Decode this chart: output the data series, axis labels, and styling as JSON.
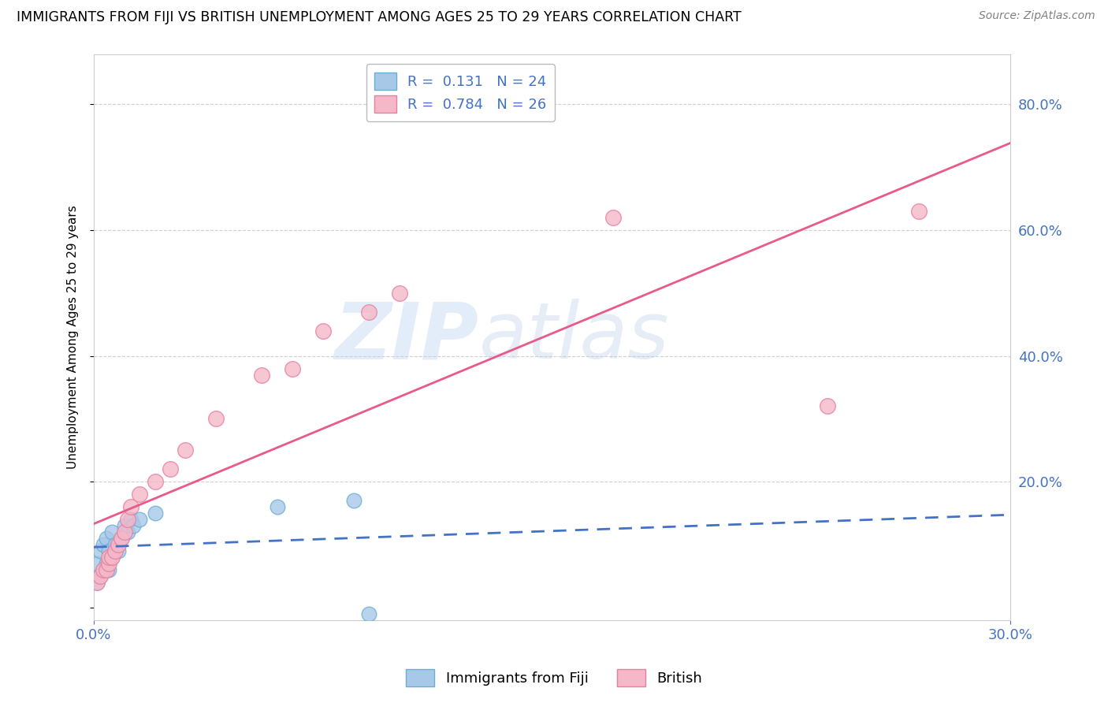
{
  "title": "IMMIGRANTS FROM FIJI VS BRITISH UNEMPLOYMENT AMONG AGES 25 TO 29 YEARS CORRELATION CHART",
  "source": "Source: ZipAtlas.com",
  "ylabel": "Unemployment Among Ages 25 to 29 years",
  "xlabel": "Immigrants from Fiji",
  "xlim": [
    0.0,
    0.3
  ],
  "ylim": [
    -0.02,
    0.88
  ],
  "fiji_color": "#a8c8e8",
  "fiji_edge_color": "#6aaed6",
  "british_color": "#f4b8c8",
  "british_edge_color": "#e87fa0",
  "fiji_line_color": "#4472c4",
  "british_line_color": "#e85a8a",
  "fiji_R": 0.131,
  "fiji_N": 24,
  "british_R": 0.784,
  "british_N": 26,
  "watermark": "ZIPatlas",
  "fiji_scatter_x": [
    0.001,
    0.001,
    0.002,
    0.002,
    0.003,
    0.003,
    0.004,
    0.004,
    0.005,
    0.005,
    0.006,
    0.006,
    0.007,
    0.008,
    0.009,
    0.01,
    0.011,
    0.012,
    0.013,
    0.015,
    0.02,
    0.06,
    0.085,
    0.09
  ],
  "fiji_scatter_y": [
    0.04,
    0.07,
    0.05,
    0.09,
    0.06,
    0.1,
    0.07,
    0.11,
    0.06,
    0.09,
    0.08,
    0.12,
    0.1,
    0.09,
    0.11,
    0.13,
    0.12,
    0.14,
    0.13,
    0.14,
    0.15,
    0.16,
    0.17,
    -0.01
  ],
  "british_scatter_x": [
    0.001,
    0.002,
    0.003,
    0.004,
    0.005,
    0.005,
    0.006,
    0.007,
    0.008,
    0.009,
    0.01,
    0.011,
    0.012,
    0.015,
    0.02,
    0.025,
    0.03,
    0.04,
    0.055,
    0.065,
    0.075,
    0.09,
    0.1,
    0.17,
    0.24,
    0.27
  ],
  "british_scatter_y": [
    0.04,
    0.05,
    0.06,
    0.06,
    0.07,
    0.08,
    0.08,
    0.09,
    0.1,
    0.11,
    0.12,
    0.14,
    0.16,
    0.18,
    0.2,
    0.22,
    0.25,
    0.3,
    0.37,
    0.38,
    0.44,
    0.47,
    0.5,
    0.62,
    0.32,
    0.63
  ],
  "background_color": "#ffffff",
  "grid_color": "#d0d0d0",
  "right_y_ticks": [
    0.2,
    0.4,
    0.6,
    0.8
  ],
  "left_y_ticks": [
    0.0,
    0.2,
    0.4,
    0.6,
    0.8
  ]
}
